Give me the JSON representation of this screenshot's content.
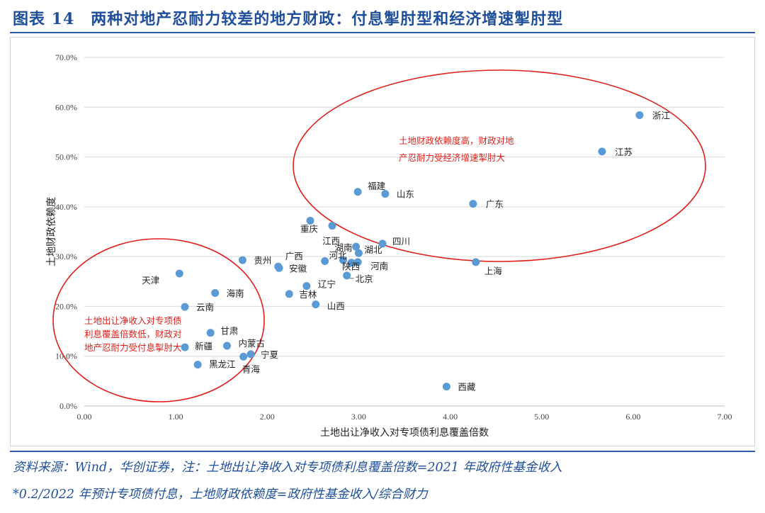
{
  "header": {
    "title": "图表 14　两种对地产忍耐力较差的地方财政：付息掣肘型和经济增速掣肘型"
  },
  "footer": {
    "source_line_1": "资料来源：Wind，华创证券，注：土地出让净收入对专项债利息覆盖倍数=2021 年政府性基金收入",
    "source_line_2": "*0.2/2022 年预计专项债付息，土地财政依赖度=政府性基金收入/综合财力"
  },
  "colors": {
    "title": "#1f4e9a",
    "point": "#5b9bd5",
    "ellipse": "#e0201b",
    "annotation": "#e0201b",
    "grid": "#d9d9d9"
  },
  "chart_data": {
    "type": "scatter",
    "xlabel": "土地出让净收入对专项债利息覆盖倍数",
    "ylabel": "土地财政依赖度",
    "xlim": [
      0,
      7
    ],
    "ylim": [
      0,
      0.7
    ],
    "x_ticks": [
      "0.00",
      "1.00",
      "2.00",
      "3.00",
      "4.00",
      "5.00",
      "6.00",
      "7.00"
    ],
    "y_ticks": [
      "0.0%",
      "10.0%",
      "20.0%",
      "30.0%",
      "40.0%",
      "50.0%",
      "60.0%",
      "70.0%"
    ],
    "grid": "horizontal",
    "points": [
      {
        "label": "浙江",
        "x": 6.07,
        "y": 0.584
      },
      {
        "label": "江苏",
        "x": 5.66,
        "y": 0.511
      },
      {
        "label": "广东",
        "x": 4.25,
        "y": 0.406
      },
      {
        "label": "上海",
        "x": 4.28,
        "y": 0.289
      },
      {
        "label": "福建",
        "x": 2.99,
        "y": 0.43
      },
      {
        "label": "山东",
        "x": 3.29,
        "y": 0.426
      },
      {
        "label": "重庆",
        "x": 2.47,
        "y": 0.372
      },
      {
        "label": "江西",
        "x": 2.71,
        "y": 0.362
      },
      {
        "label": "四川",
        "x": 3.26,
        "y": 0.326
      },
      {
        "label": "湖南",
        "x": 2.97,
        "y": 0.32
      },
      {
        "label": "湖北",
        "x": 3.0,
        "y": 0.307
      },
      {
        "label": "河北",
        "x": 2.83,
        "y": 0.293
      },
      {
        "label": "陕西",
        "x": 2.92,
        "y": 0.288
      },
      {
        "label": "河南",
        "x": 2.99,
        "y": 0.289
      },
      {
        "label": "贵州",
        "x": 1.73,
        "y": 0.293
      },
      {
        "label": "广西",
        "x": 2.12,
        "y": 0.28
      },
      {
        "label": "安徽",
        "x": 2.13,
        "y": 0.277
      },
      {
        "label": "江西2",
        "x": 2.63,
        "y": 0.291
      },
      {
        "label": "北京",
        "x": 2.87,
        "y": 0.262
      },
      {
        "label": "辽宁",
        "x": 2.43,
        "y": 0.241
      },
      {
        "label": "吉林",
        "x": 2.24,
        "y": 0.225
      },
      {
        "label": "山西",
        "x": 2.53,
        "y": 0.204
      },
      {
        "label": "天津",
        "x": 1.04,
        "y": 0.266
      },
      {
        "label": "海南",
        "x": 1.43,
        "y": 0.227
      },
      {
        "label": "云南",
        "x": 1.1,
        "y": 0.199
      },
      {
        "label": "甘肃",
        "x": 1.38,
        "y": 0.147
      },
      {
        "label": "新疆",
        "x": 1.1,
        "y": 0.118
      },
      {
        "label": "内蒙古",
        "x": 1.56,
        "y": 0.121
      },
      {
        "label": "宁夏",
        "x": 1.82,
        "y": 0.104
      },
      {
        "label": "青海",
        "x": 1.74,
        "y": 0.099
      },
      {
        "label": "黑龙江",
        "x": 1.24,
        "y": 0.083
      },
      {
        "label": "西藏",
        "x": 3.96,
        "y": 0.039
      }
    ],
    "annotations": [
      {
        "lines": [
          "土地财政依赖度高，财政对地",
          "产忍耐力受经济增速掣肘大"
        ]
      },
      {
        "lines": [
          "土地出让净收入对专项债",
          "利息覆盖倍数低，财政对",
          "地产忍耐力受付息掣肘大"
        ]
      }
    ]
  }
}
